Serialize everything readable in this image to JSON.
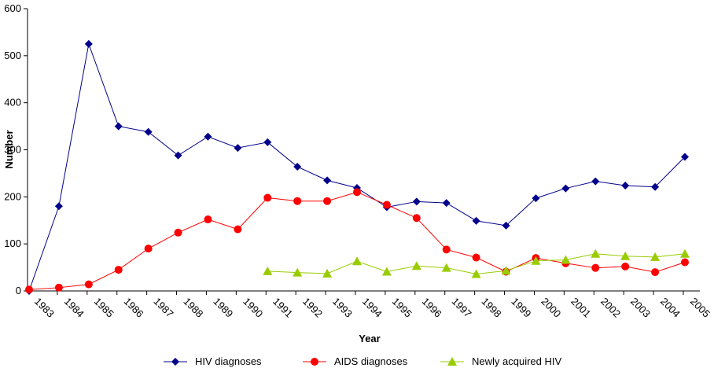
{
  "chart_data": {
    "type": "line",
    "title": "",
    "xlabel": "Year",
    "ylabel": "Number",
    "ylim": [
      0,
      600
    ],
    "yticks": [
      0,
      100,
      200,
      300,
      400,
      500,
      600
    ],
    "categories": [
      "1983",
      "1984",
      "1985",
      "1986",
      "1987",
      "1988",
      "1989",
      "1990",
      "1991",
      "1992",
      "1993",
      "1994",
      "1995",
      "1996",
      "1997",
      "1998",
      "1999",
      "2000",
      "2001",
      "2002",
      "2003",
      "2004",
      "2005"
    ],
    "grid": false,
    "legend_position": "bottom",
    "series": [
      {
        "name": "HIV diagnoses",
        "color": "#00008b",
        "marker": "diamond",
        "values": [
          0,
          180,
          525,
          350,
          338,
          288,
          328,
          304,
          316,
          264,
          235,
          219,
          178,
          190,
          187,
          149,
          139,
          197,
          218,
          233,
          224,
          221,
          285
        ]
      },
      {
        "name": "AIDS diagnoses",
        "color": "#ff0000",
        "marker": "circle",
        "values": [
          3,
          7,
          14,
          45,
          90,
          124,
          152,
          131,
          198,
          191,
          191,
          210,
          183,
          155,
          88,
          71,
          41,
          70,
          59,
          49,
          52,
          40,
          61
        ]
      },
      {
        "name": "Newly acquired HIV",
        "color": "#99cc00",
        "marker": "triangle",
        "values": [
          null,
          null,
          null,
          null,
          null,
          null,
          null,
          null,
          42,
          39,
          37,
          63,
          41,
          53,
          49,
          36,
          43,
          64,
          66,
          79,
          74,
          72,
          79
        ]
      }
    ]
  }
}
